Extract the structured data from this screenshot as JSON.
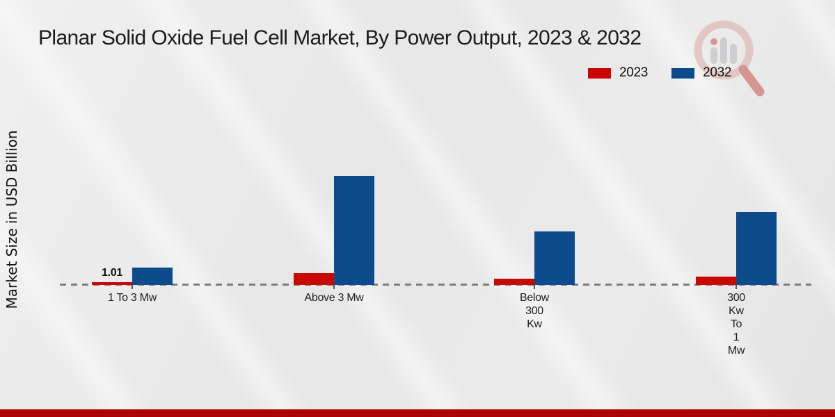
{
  "header": {
    "title": "Planar Solid Oxide Fuel Cell Market, By Power Output, 2023 & 2032"
  },
  "y_axis": {
    "label": "Market Size in USD Billion"
  },
  "legend": {
    "items": [
      {
        "label": "2023",
        "color": "#c90703"
      },
      {
        "label": "2032",
        "color": "#0d4b8c"
      }
    ]
  },
  "watermark": {
    "icon": "market-research-magnifier-logo"
  },
  "chart_data": {
    "type": "bar",
    "title": "Planar Solid Oxide Fuel Cell Market, By Power Output, 2023 & 2032",
    "categories": [
      "1 To 3 Mw",
      "Above 3 Mw",
      "Below 300 Kw",
      "300 Kw To 1 Mw"
    ],
    "category_label_lines": [
      [
        "1 To 3 Mw"
      ],
      [
        "Above 3 Mw"
      ],
      [
        "Below",
        "300",
        "Kw"
      ],
      [
        "300",
        "Kw",
        "To",
        "1",
        "Mw"
      ]
    ],
    "series": [
      {
        "name": "2023",
        "color": "#c90703",
        "values": [
          1.01,
          4.3,
          2.3,
          3.0
        ]
      },
      {
        "name": "2032",
        "color": "#0d4b8c",
        "values": [
          6.3,
          39.7,
          19.5,
          26.5
        ]
      }
    ],
    "data_labels": [
      {
        "series": "2023",
        "category": "1 To 3 Mw",
        "text": "1.01"
      }
    ],
    "xlabel": "",
    "ylabel": "Market Size in USD Billion",
    "ylim": [
      0,
      45
    ],
    "grid": false,
    "baseline_style": "dashed",
    "legend_position": "top-right"
  },
  "footer": {
    "band_color": "#ab0104"
  }
}
